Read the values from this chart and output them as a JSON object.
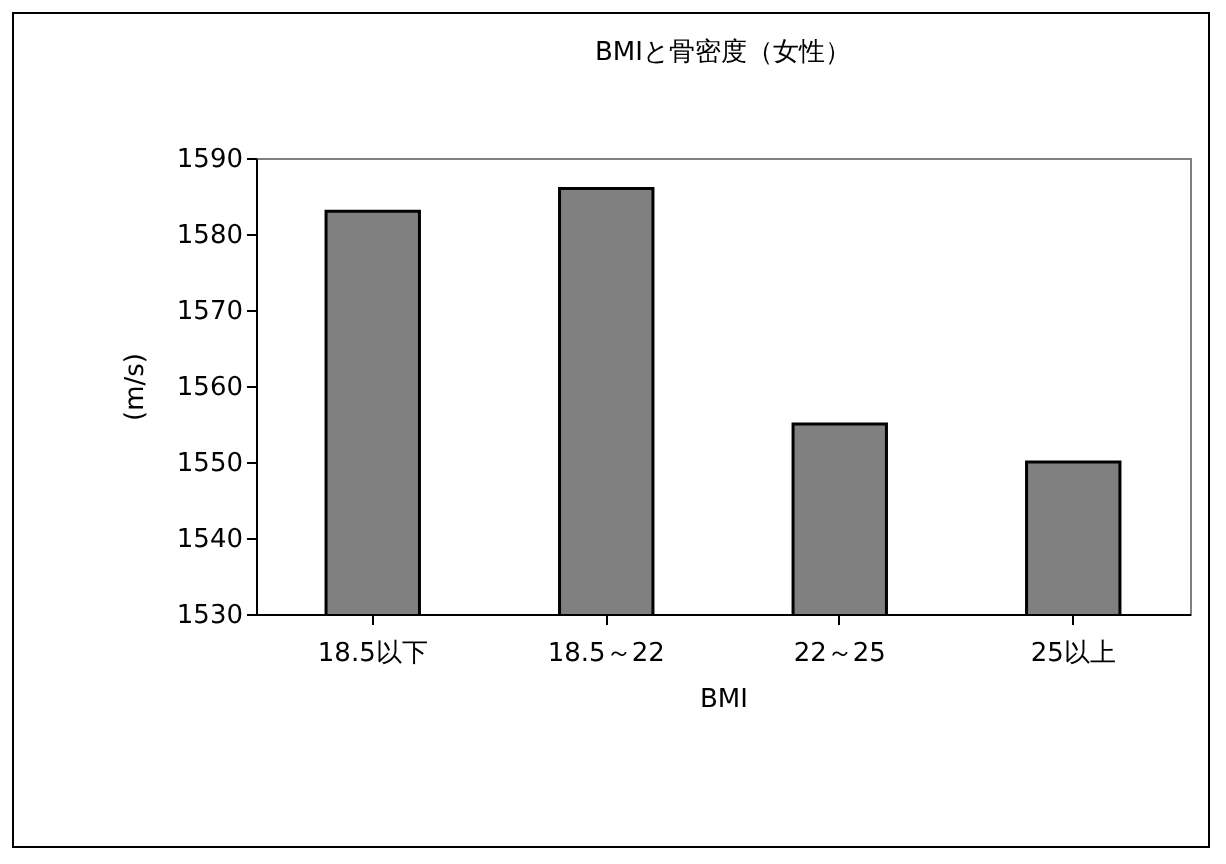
{
  "chart_data": {
    "type": "bar",
    "title": "BMIと骨密度（女性）",
    "xlabel": "BMI",
    "ylabel": "(m/s)",
    "categories": [
      "18.5以下",
      "18.5～22",
      "22～25",
      "25以上"
    ],
    "values": [
      1583,
      1586,
      1555,
      1550
    ],
    "color": "#808080",
    "ylim": [
      1530,
      1590
    ],
    "yticks": [
      1530,
      1540,
      1550,
      1560,
      1570,
      1580,
      1590
    ],
    "grid": false
  }
}
